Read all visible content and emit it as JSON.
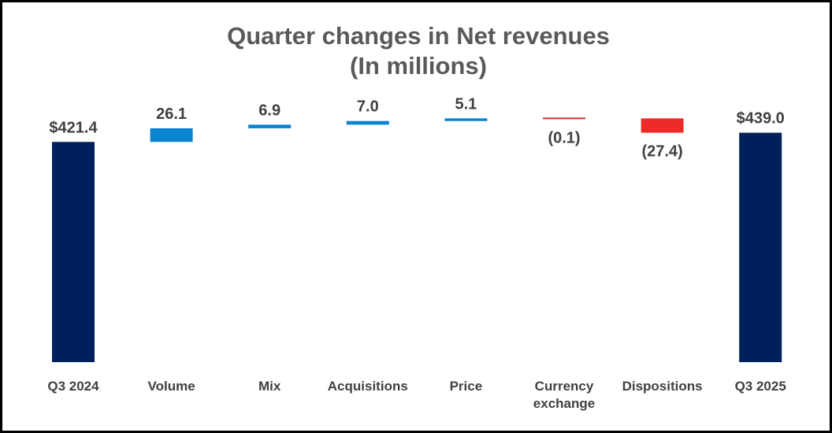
{
  "chart_data": {
    "type": "bar",
    "subtype": "waterfall",
    "title": "Quarter changes in Net revenues",
    "subtitle": "(In millions)",
    "categories": [
      "Q3 2024",
      "Volume",
      "Mix",
      "Acquisitions",
      "Price",
      "Currency\nexchange",
      "Dispositions",
      "Q3 2025"
    ],
    "values": [
      421.4,
      26.1,
      6.9,
      7.0,
      5.1,
      -0.1,
      -27.4,
      439.0
    ],
    "kinds": [
      "total",
      "delta",
      "delta",
      "delta",
      "delta",
      "delta",
      "delta",
      "total"
    ],
    "data_labels": [
      "$421.4",
      "26.1",
      "6.9",
      "7.0",
      "5.1",
      "(0.1)",
      "(27.4)",
      "$439.0"
    ],
    "colors": {
      "total": "#00205b",
      "increase": "#0a84cf",
      "decrease": "#ee2b2b",
      "currency_decrease": "#c0392b"
    },
    "ylim": [
      0,
      480
    ],
    "grid": false,
    "legend": "none"
  }
}
